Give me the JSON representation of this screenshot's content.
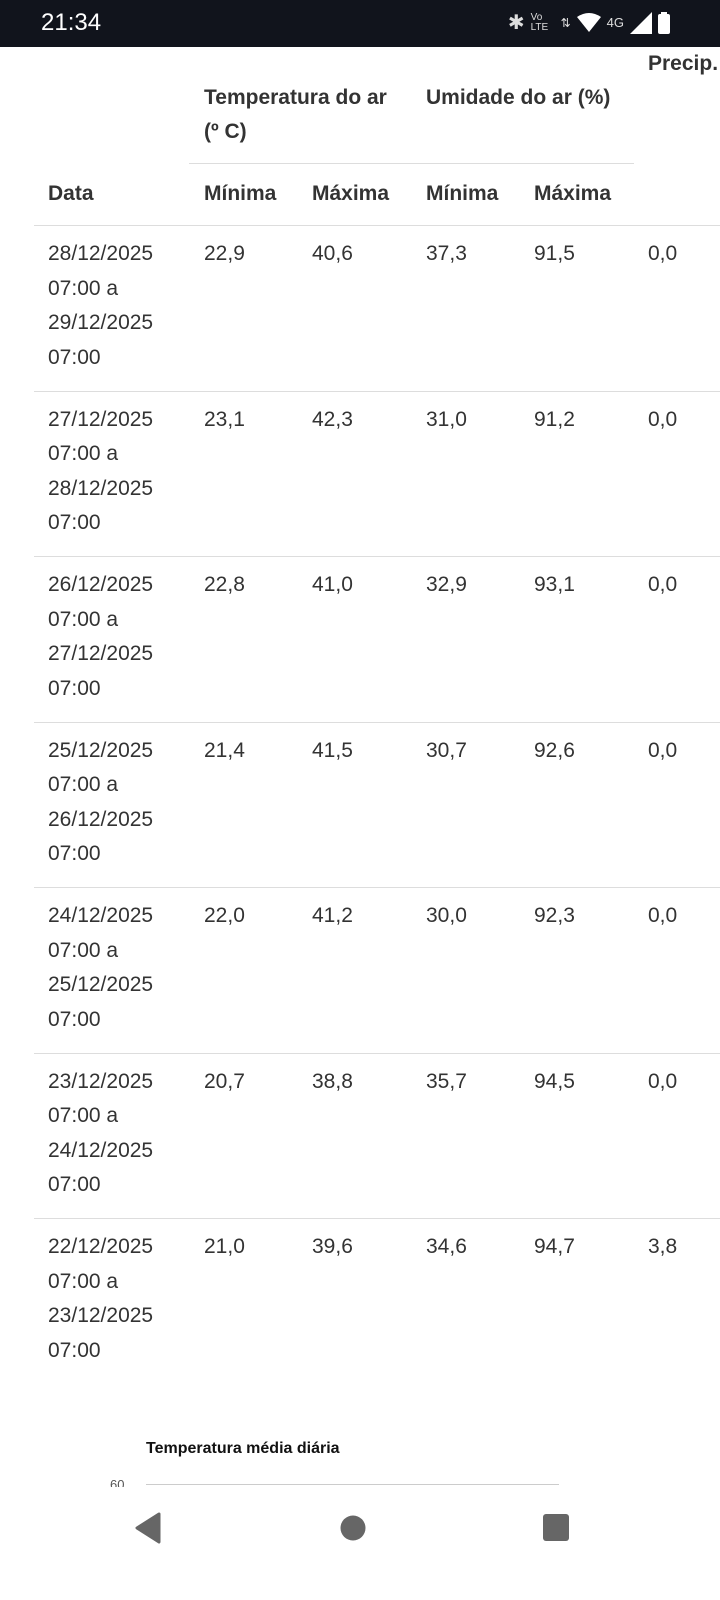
{
  "status_bar": {
    "time": "21:34",
    "network": "4G",
    "volte": "Vo LTE"
  },
  "table": {
    "headers": {
      "date": "Data",
      "temperature": "Temperatura do ar (º C)",
      "humidity": "Umidade do ar (%)",
      "precip": "Precip. acum. (mm)",
      "min": "Mínima",
      "max": "Máxima"
    },
    "rows": [
      {
        "date": [
          "28/12/2025",
          "07:00 a",
          "29/12/2025",
          "07:00"
        ],
        "tmin": "22,9",
        "tmax": "40,6",
        "hmin": "37,3",
        "hmax": "91,5",
        "precip": "0,0"
      },
      {
        "date": [
          "27/12/2025",
          "07:00 a",
          "28/12/2025",
          "07:00"
        ],
        "tmin": "23,1",
        "tmax": "42,3",
        "hmin": "31,0",
        "hmax": "91,2",
        "precip": "0,0"
      },
      {
        "date": [
          "26/12/2025",
          "07:00 a",
          "27/12/2025",
          "07:00"
        ],
        "tmin": "22,8",
        "tmax": "41,0",
        "hmin": "32,9",
        "hmax": "93,1",
        "precip": "0,0"
      },
      {
        "date": [
          "25/12/2025",
          "07:00 a",
          "26/12/2025",
          "07:00"
        ],
        "tmin": "21,4",
        "tmax": "41,5",
        "hmin": "30,7",
        "hmax": "92,6",
        "precip": "0,0"
      },
      {
        "date": [
          "24/12/2025",
          "07:00 a",
          "25/12/2025",
          "07:00"
        ],
        "tmin": "22,0",
        "tmax": "41,2",
        "hmin": "30,0",
        "hmax": "92,3",
        "precip": "0,0"
      },
      {
        "date": [
          "23/12/2025",
          "07:00 a",
          "24/12/2025",
          "07:00"
        ],
        "tmin": "20,7",
        "tmax": "38,8",
        "hmin": "35,7",
        "hmax": "94,5",
        "precip": "0,0"
      },
      {
        "date": [
          "22/12/2025",
          "07:00 a",
          "23/12/2025",
          "07:00"
        ],
        "tmin": "21,0",
        "tmax": "39,6",
        "hmin": "34,6",
        "hmax": "94,7",
        "precip": "3,8"
      }
    ]
  },
  "chart": {
    "title": "Temperatura média diária",
    "y_tick_top": "60"
  },
  "nav": {
    "icons": [
      "back-icon",
      "home-icon",
      "recents-icon"
    ]
  }
}
